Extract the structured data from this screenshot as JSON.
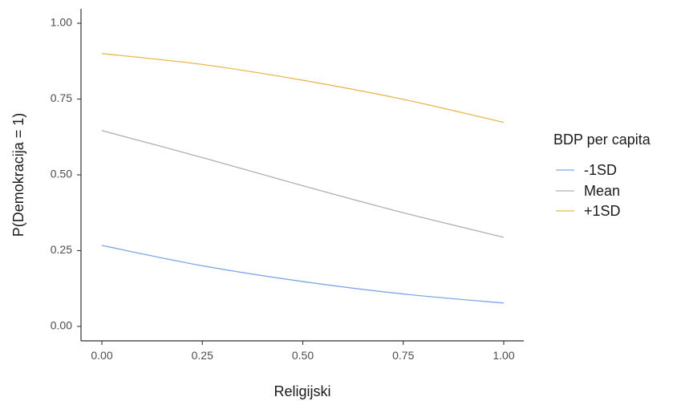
{
  "chart_data": {
    "type": "line",
    "title": "",
    "xlabel": "Religijski",
    "ylabel": "P(Demokracija = 1)",
    "xlim": [
      0,
      1
    ],
    "ylim": [
      0,
      1
    ],
    "x_ticks": [
      "0.00",
      "0.25",
      "0.50",
      "0.75",
      "1.00"
    ],
    "y_ticks": [
      "0.00",
      "0.25",
      "0.50",
      "0.75",
      "1.00"
    ],
    "grid": false,
    "legend_title": "BDP per capita",
    "legend_position": "right",
    "x": [
      0,
      0.25,
      0.5,
      0.75,
      1
    ],
    "series": [
      {
        "name": "-1SD",
        "color": "#7ea6e9",
        "values": [
          0.267,
          0.2,
          0.148,
          0.107,
          0.077
        ]
      },
      {
        "name": "Mean",
        "color": "#b0b0b0",
        "values": [
          0.646,
          0.557,
          0.464,
          0.375,
          0.294
        ]
      },
      {
        "name": "+1SD",
        "color": "#e9b84c",
        "values": [
          0.9,
          0.864,
          0.812,
          0.749,
          0.673
        ]
      }
    ]
  }
}
